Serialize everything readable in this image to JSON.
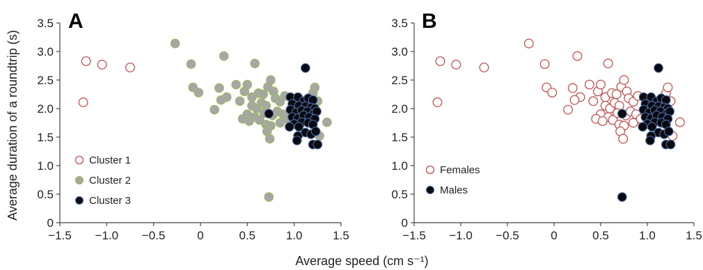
{
  "chart_data": [
    {
      "type": "scatter",
      "panel_label": "A",
      "xlabel": "Average speed (cm s⁻¹)",
      "ylabel": "Average duration of a roundtrip (s)",
      "xlim": [
        -1.5,
        1.5
      ],
      "ylim": [
        0,
        3.5
      ],
      "x_ticks": [
        "−1.5",
        "−1.0",
        "−0.5",
        "0",
        "0.5",
        "1.0",
        "1.5"
      ],
      "y_ticks": [
        "0",
        "0.5",
        "1.0",
        "1.5",
        "2.0",
        "2.5",
        "3.0",
        "3.5"
      ],
      "grid": false,
      "legend_position": "bottom-left",
      "series": [
        {
          "name": "Cluster 1",
          "style": "hollow",
          "stroke": "#c0504d",
          "fill": "#ffffff",
          "points": [
            [
              -1.22,
              2.83
            ],
            [
              -1.05,
              2.77
            ],
            [
              -0.75,
              2.72
            ],
            [
              -1.25,
              2.11
            ]
          ]
        },
        {
          "name": "Cluster 2",
          "style": "filled",
          "stroke": "#9bbb59",
          "fill": "#a6a6a6",
          "points": [
            [
              -0.27,
              3.14
            ],
            [
              -0.1,
              2.78
            ],
            [
              0.25,
              2.92
            ],
            [
              0.58,
              2.79
            ],
            [
              -0.08,
              2.37
            ],
            [
              -0.02,
              2.28
            ],
            [
              0.2,
              2.36
            ],
            [
              0.28,
              2.2
            ],
            [
              0.22,
              2.15
            ],
            [
              0.15,
              1.98
            ],
            [
              0.38,
              2.42
            ],
            [
              0.42,
              2.13
            ],
            [
              0.47,
              2.3
            ],
            [
              0.5,
              2.42
            ],
            [
              0.55,
              2.2
            ],
            [
              0.62,
              2.27
            ],
            [
              0.67,
              2.25
            ],
            [
              0.72,
              2.38
            ],
            [
              0.75,
              2.5
            ],
            [
              0.78,
              2.3
            ],
            [
              0.55,
              2.05
            ],
            [
              0.6,
              2.0
            ],
            [
              0.65,
              2.1
            ],
            [
              0.7,
              2.05
            ],
            [
              0.8,
              2.18
            ],
            [
              0.85,
              2.12
            ],
            [
              0.9,
              2.22
            ],
            [
              0.5,
              1.9
            ],
            [
              0.58,
              1.85
            ],
            [
              0.63,
              1.8
            ],
            [
              0.68,
              1.92
            ],
            [
              0.77,
              1.88
            ],
            [
              0.82,
              1.95
            ],
            [
              0.88,
              1.9
            ],
            [
              0.45,
              1.82
            ],
            [
              0.52,
              1.78
            ],
            [
              0.7,
              1.72
            ],
            [
              0.75,
              1.7
            ],
            [
              0.85,
              1.75
            ],
            [
              0.93,
              1.82
            ],
            [
              0.71,
              1.6
            ],
            [
              0.74,
              1.47
            ],
            [
              1.2,
              2.27
            ],
            [
              1.22,
              2.37
            ],
            [
              1.25,
              2.13
            ],
            [
              1.27,
              1.52
            ],
            [
              1.35,
              1.76
            ],
            [
              0.73,
              0.45
            ]
          ]
        },
        {
          "name": "Cluster 3",
          "style": "filled",
          "stroke": "#4a6fa5",
          "fill": "#0a0a12",
          "points": [
            [
              1.12,
              2.71
            ],
            [
              0.73,
              1.91
            ],
            [
              0.96,
              2.2
            ],
            [
              1.04,
              2.2
            ],
            [
              1.1,
              2.13
            ],
            [
              1.15,
              2.18
            ],
            [
              1.2,
              2.15
            ],
            [
              0.98,
              2.08
            ],
            [
              1.05,
              2.05
            ],
            [
              1.12,
              2.04
            ],
            [
              1.18,
              2.02
            ],
            [
              1.22,
              2.0
            ],
            [
              0.96,
              1.98
            ],
            [
              1.02,
              1.93
            ],
            [
              1.08,
              1.97
            ],
            [
              1.14,
              1.95
            ],
            [
              1.2,
              1.9
            ],
            [
              1.24,
              1.95
            ],
            [
              0.98,
              1.85
            ],
            [
              1.04,
              1.83
            ],
            [
              1.1,
              1.88
            ],
            [
              1.16,
              1.85
            ],
            [
              1.22,
              1.82
            ],
            [
              1.08,
              1.76
            ],
            [
              1.15,
              1.75
            ],
            [
              1.2,
              1.72
            ],
            [
              1.0,
              1.73
            ],
            [
              1.05,
              1.68
            ],
            [
              0.95,
              1.68
            ],
            [
              1.12,
              1.58
            ],
            [
              1.04,
              1.52
            ],
            [
              1.18,
              1.55
            ],
            [
              1.23,
              1.6
            ],
            [
              1.2,
              1.37
            ],
            [
              1.03,
              1.44
            ],
            [
              1.25,
              1.37
            ]
          ]
        }
      ]
    },
    {
      "type": "scatter",
      "panel_label": "B",
      "xlim": [
        -1.5,
        1.5
      ],
      "ylim": [
        0,
        3.5
      ],
      "x_ticks": [
        "−1.5",
        "−1.0",
        "−0.5",
        "0",
        "0.5",
        "1.0",
        "1.5"
      ],
      "y_ticks": [
        "0",
        "0.5",
        "1.0",
        "1.5",
        "2.0",
        "2.5",
        "3.0",
        "3.5"
      ],
      "grid": false,
      "legend_position": "bottom-left",
      "series": [
        {
          "name": "Females",
          "style": "hollow",
          "stroke": "#c0504d",
          "fill": "#ffffff",
          "points": [
            [
              -1.22,
              2.83
            ],
            [
              -1.05,
              2.77
            ],
            [
              -0.75,
              2.72
            ],
            [
              -1.25,
              2.11
            ],
            [
              -0.27,
              3.14
            ],
            [
              -0.1,
              2.78
            ],
            [
              0.25,
              2.92
            ],
            [
              0.58,
              2.79
            ],
            [
              -0.08,
              2.37
            ],
            [
              -0.02,
              2.28
            ],
            [
              0.2,
              2.36
            ],
            [
              0.28,
              2.2
            ],
            [
              0.22,
              2.15
            ],
            [
              0.15,
              1.98
            ],
            [
              0.38,
              2.42
            ],
            [
              0.42,
              2.13
            ],
            [
              0.47,
              2.3
            ],
            [
              0.5,
              2.42
            ],
            [
              0.55,
              2.2
            ],
            [
              0.62,
              2.27
            ],
            [
              0.67,
              2.25
            ],
            [
              0.72,
              2.38
            ],
            [
              0.75,
              2.5
            ],
            [
              0.78,
              2.3
            ],
            [
              0.55,
              2.05
            ],
            [
              0.6,
              2.0
            ],
            [
              0.65,
              2.1
            ],
            [
              0.7,
              2.05
            ],
            [
              0.8,
              2.18
            ],
            [
              0.85,
              2.12
            ],
            [
              0.9,
              2.22
            ],
            [
              0.5,
              1.9
            ],
            [
              0.58,
              1.85
            ],
            [
              0.63,
              1.8
            ],
            [
              0.68,
              1.92
            ],
            [
              0.77,
              1.88
            ],
            [
              0.82,
              1.95
            ],
            [
              0.88,
              1.9
            ],
            [
              0.45,
              1.82
            ],
            [
              0.52,
              1.78
            ],
            [
              0.7,
              1.72
            ],
            [
              0.75,
              1.7
            ],
            [
              0.85,
              1.75
            ],
            [
              0.93,
              1.82
            ],
            [
              0.71,
              1.6
            ],
            [
              0.74,
              1.47
            ],
            [
              1.2,
              2.27
            ],
            [
              1.22,
              2.37
            ],
            [
              1.25,
              2.13
            ],
            [
              1.27,
              1.52
            ],
            [
              1.35,
              1.76
            ]
          ]
        },
        {
          "name": "Males",
          "style": "filled",
          "stroke": "#4a6fa5",
          "fill": "#0a0a12",
          "points": [
            [
              1.12,
              2.71
            ],
            [
              0.73,
              1.91
            ],
            [
              0.96,
              2.2
            ],
            [
              1.04,
              2.2
            ],
            [
              1.1,
              2.13
            ],
            [
              1.15,
              2.18
            ],
            [
              1.2,
              2.15
            ],
            [
              0.98,
              2.08
            ],
            [
              1.05,
              2.05
            ],
            [
              1.12,
              2.04
            ],
            [
              1.18,
              2.02
            ],
            [
              1.22,
              2.0
            ],
            [
              0.96,
              1.98
            ],
            [
              1.02,
              1.93
            ],
            [
              1.08,
              1.97
            ],
            [
              1.14,
              1.95
            ],
            [
              1.2,
              1.9
            ],
            [
              1.24,
              1.95
            ],
            [
              0.98,
              1.85
            ],
            [
              1.04,
              1.83
            ],
            [
              1.1,
              1.88
            ],
            [
              1.16,
              1.85
            ],
            [
              1.22,
              1.82
            ],
            [
              1.08,
              1.76
            ],
            [
              1.15,
              1.75
            ],
            [
              1.2,
              1.72
            ],
            [
              1.0,
              1.73
            ],
            [
              1.05,
              1.68
            ],
            [
              0.95,
              1.68
            ],
            [
              1.12,
              1.58
            ],
            [
              1.04,
              1.52
            ],
            [
              1.18,
              1.55
            ],
            [
              1.23,
              1.6
            ],
            [
              1.2,
              1.37
            ],
            [
              1.03,
              1.44
            ],
            [
              1.25,
              1.37
            ],
            [
              0.73,
              0.45
            ]
          ]
        }
      ]
    }
  ]
}
